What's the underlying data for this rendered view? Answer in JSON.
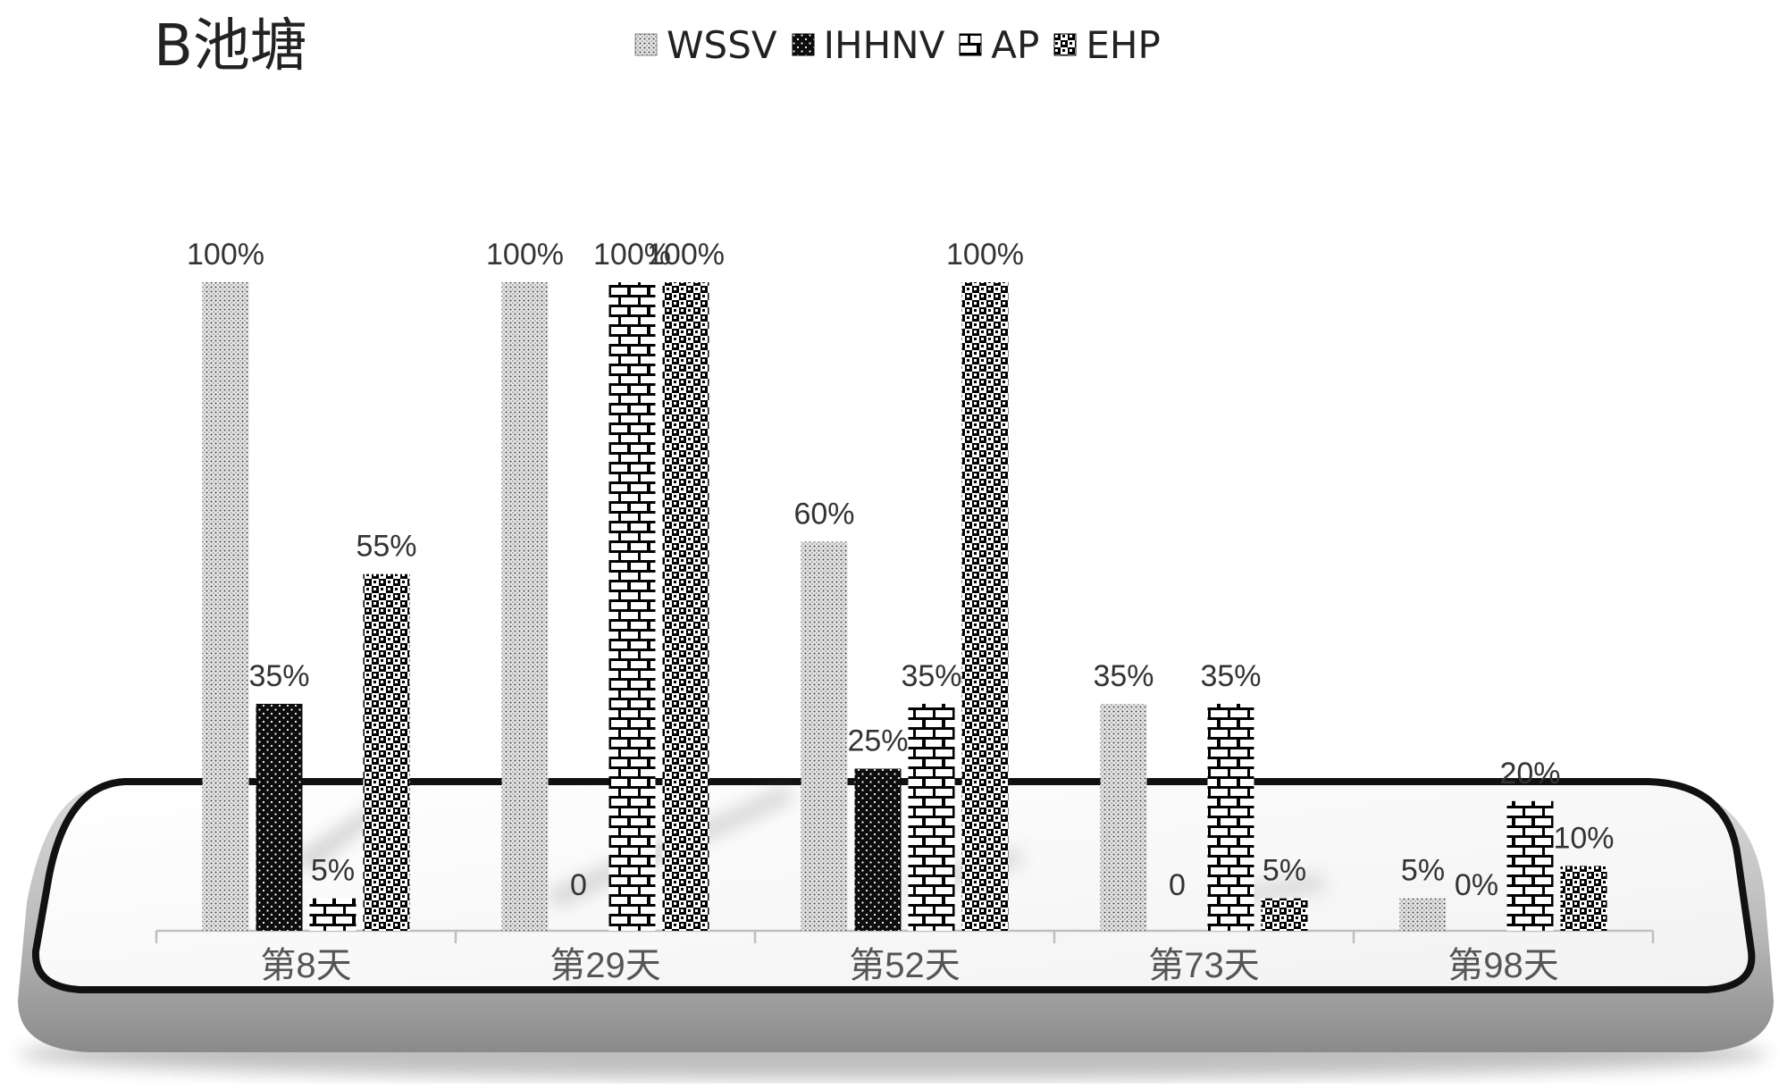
{
  "chart_data": {
    "type": "bar",
    "title": "B池塘",
    "categories": [
      "第8天",
      "第29天",
      "第52天",
      "第73天",
      "第98天"
    ],
    "series": [
      {
        "name": "WSSV",
        "values": [
          100,
          100,
          60,
          35,
          5
        ],
        "labels": [
          "100%",
          "100%",
          "60%",
          "35%",
          "5%"
        ]
      },
      {
        "name": "IHHNV",
        "values": [
          35,
          0,
          25,
          0,
          0
        ],
        "labels": [
          "35%",
          "0",
          "25%",
          "0",
          "0%"
        ]
      },
      {
        "name": "AP",
        "values": [
          5,
          100,
          35,
          35,
          20
        ],
        "labels": [
          "5%",
          "100%",
          "35%",
          "35%",
          "20%"
        ]
      },
      {
        "name": "EHP",
        "values": [
          55,
          100,
          100,
          5,
          10
        ],
        "labels": [
          "55%",
          "100%",
          "100%",
          "5%",
          "10%"
        ]
      }
    ],
    "ylim": [
      0,
      100
    ],
    "xlabel": "",
    "ylabel": "",
    "grid": false,
    "legend_position": "top-center",
    "colors": {
      "text": "#333333",
      "axis": "#bfbfbf",
      "phone_frame": "#111111"
    }
  }
}
